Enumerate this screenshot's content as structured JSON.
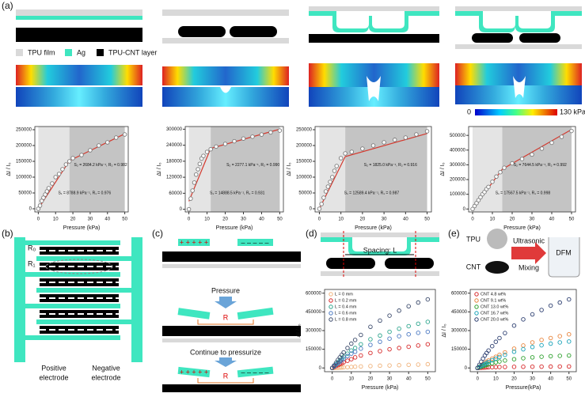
{
  "panel_labels": [
    "(a)",
    "(b)",
    "(c)",
    "(d)",
    "(e)"
  ],
  "legend_a": [
    "TPU film",
    "Ag",
    "TPU-CNT layer"
  ],
  "colorbar": {
    "min": "0",
    "max": "130 kPa"
  },
  "panel_b": {
    "labels": [
      "R₀",
      "R₁"
    ],
    "electrodes": [
      [
        "Positive",
        "electrode"
      ],
      [
        "Negative",
        "electrode"
      ]
    ]
  },
  "panel_c": {
    "plus": "+ + + + +",
    "minus": "– – – – –",
    "step1": "Pressure",
    "step2": "Continue to pressurize",
    "resistor": "R"
  },
  "panel_d": {
    "spacing": "Spacing: L"
  },
  "panel_e": {
    "tpu": "TPU",
    "cnt": "CNT",
    "ultrasonic": "Ultrasonic",
    "mixing": "Mixing",
    "dfm": "DFM"
  },
  "chart_data": [
    {
      "type": "scatter",
      "x_label": "Pressure (kPa)",
      "y_label": "ΔI / I₀",
      "xlim": [
        -2,
        52
      ],
      "xticks": [
        0,
        10,
        20,
        30,
        40,
        50
      ],
      "ylim": [
        -10000,
        260000
      ],
      "yticks": [
        0,
        50000,
        100000,
        150000,
        200000,
        250000
      ],
      "regions": [
        {
          "from": 0,
          "to": 18,
          "color": "#e4e4e4"
        },
        {
          "from": 18,
          "to": 50,
          "color": "#c4c4c4"
        }
      ],
      "x": [
        0,
        1,
        2,
        3,
        4,
        5,
        6,
        8,
        10,
        12,
        14,
        16,
        18,
        20,
        25,
        30,
        35,
        40,
        45,
        50
      ],
      "series": [
        {
          "color": "#7a7a7a",
          "values": [
            0,
            10000,
            25000,
            35000,
            45000,
            55000,
            65000,
            80000,
            100000,
            110000,
            125000,
            140000,
            150000,
            160000,
            170000,
            185000,
            200000,
            210000,
            225000,
            235000
          ]
        }
      ],
      "fit": {
        "x": [
          0,
          18,
          50
        ],
        "values": [
          0,
          152000,
          237000
        ],
        "color": "#d43a2f"
      },
      "annotations": [
        "S₂ = 2684.2 kPa⁻¹, R₂ = 0.982",
        "S₁ = 8788.9 kPa⁻¹, R₁ = 0.976"
      ]
    },
    {
      "type": "scatter",
      "x_label": "Pressure (kPa)",
      "y_label": "ΔI / I₀",
      "xlim": [
        -2,
        52
      ],
      "xticks": [
        0,
        10,
        20,
        30,
        40,
        50
      ],
      "ylim": [
        -10000,
        310000
      ],
      "yticks": [
        0,
        60000,
        120000,
        180000,
        240000,
        300000
      ],
      "regions": [
        {
          "from": 0,
          "to": 12,
          "color": "#e4e4e4"
        },
        {
          "from": 12,
          "to": 50,
          "color": "#c4c4c4"
        }
      ],
      "x": [
        0,
        1,
        2,
        3,
        4,
        5,
        6,
        7,
        8,
        10,
        12,
        15,
        20,
        25,
        30,
        35,
        40,
        45,
        50
      ],
      "series": [
        {
          "color": "#7a7a7a",
          "values": [
            0,
            40000,
            70000,
            100000,
            130000,
            150000,
            170000,
            190000,
            200000,
            215000,
            225000,
            235000,
            245000,
            255000,
            265000,
            272000,
            280000,
            288000,
            295000
          ]
        }
      ],
      "fit": {
        "x": [
          0,
          12,
          50
        ],
        "values": [
          30000,
          228000,
          300000
        ],
        "color": "#d43a2f"
      },
      "annotations": [
        "S₂ = 2277.1 kPa⁻¹, R₂ = 0.990",
        "S₁ = 14888.5 kPa⁻¹, R₁ = 0.931"
      ]
    },
    {
      "type": "scatter",
      "x_label": "Pressure (kPa)",
      "y_label": "ΔI / I₀",
      "xlim": [
        -2,
        52
      ],
      "xticks": [
        0,
        10,
        20,
        30,
        40,
        50
      ],
      "ylim": [
        -10000,
        260000
      ],
      "yticks": [
        0,
        50000,
        100000,
        150000,
        200000,
        250000
      ],
      "regions": [
        {
          "from": 0,
          "to": 12,
          "color": "#e4e4e4"
        },
        {
          "from": 12,
          "to": 50,
          "color": "#c4c4c4"
        }
      ],
      "x": [
        0,
        1,
        2,
        3,
        4,
        5,
        6,
        7,
        8,
        10,
        12,
        15,
        20,
        25,
        30,
        35,
        40,
        45,
        50
      ],
      "series": [
        {
          "color": "#7a7a7a",
          "values": [
            0,
            15000,
            35000,
            55000,
            70000,
            85000,
            100000,
            120000,
            135000,
            160000,
            175000,
            180000,
            190000,
            200000,
            210000,
            218000,
            225000,
            235000,
            245000
          ]
        }
      ],
      "fit": {
        "x": [
          0,
          12,
          50
        ],
        "values": [
          0,
          165000,
          238000
        ],
        "color": "#d43a2f"
      },
      "annotations": [
        "S₂ = 1825.0 kPa⁻¹, R₂ = 0.916",
        "S₁ = 12589.4 kPa⁻¹, R₁ = 0.987"
      ]
    },
    {
      "type": "scatter",
      "x_label": "Pressure (kPa)",
      "y_label": "ΔI / I₀",
      "xlim": [
        -2,
        52
      ],
      "xticks": [
        0,
        10,
        20,
        30,
        40,
        50
      ],
      "ylim": [
        -20000,
        560000
      ],
      "yticks": [
        0,
        100000,
        200000,
        300000,
        400000,
        500000
      ],
      "regions": [
        {
          "from": 0,
          "to": 15,
          "color": "#e4e4e4"
        },
        {
          "from": 15,
          "to": 50,
          "color": "#c4c4c4"
        }
      ],
      "x": [
        0,
        1,
        2,
        3,
        4,
        5,
        6,
        7,
        8,
        10,
        12,
        14,
        16,
        20,
        25,
        30,
        35,
        40,
        45,
        50
      ],
      "series": [
        {
          "color": "#7a7a7a",
          "values": [
            0,
            20000,
            40000,
            60000,
            80000,
            100000,
            115000,
            135000,
            150000,
            185000,
            220000,
            250000,
            280000,
            310000,
            340000,
            370000,
            410000,
            450000,
            490000,
            530000
          ]
        }
      ],
      "fit": {
        "x": [
          0,
          15,
          50
        ],
        "values": [
          0,
          270000,
          540000
        ],
        "color": "#d43a2f"
      },
      "annotations": [
        "S₂ = 7644.5 kPa⁻¹, R₂ = 0.992",
        "S₁ = 17567.5 kPa⁻¹, R₁ = 0.998"
      ]
    },
    {
      "type": "scatter",
      "x_label": "Pressure (kPa)",
      "y_label": "ΔI / I₀",
      "legend": "top-left",
      "xlim": [
        -4,
        54
      ],
      "xticks": [
        0,
        10,
        20,
        30,
        40,
        50
      ],
      "ylim": [
        -30000,
        630000
      ],
      "yticks": [
        0,
        150000,
        300000,
        450000,
        600000
      ],
      "x": [
        0,
        1,
        2,
        3,
        4,
        5,
        6,
        8,
        10,
        12,
        15,
        20,
        25,
        30,
        35,
        40,
        45,
        50
      ],
      "series": [
        {
          "name": "L = 0 mm",
          "color": "#f0b27a",
          "values": [
            0,
            500,
            1000,
            2000,
            3000,
            4000,
            5000,
            6000,
            8000,
            10000,
            12000,
            15000,
            18000,
            20000,
            22000,
            25000,
            27000,
            30000
          ]
        },
        {
          "name": "L = 0.2 mm",
          "color": "#d62728",
          "values": [
            0,
            8000,
            15000,
            22000,
            30000,
            38000,
            45000,
            58000,
            70000,
            85000,
            100000,
            120000,
            135000,
            150000,
            160000,
            170000,
            180000,
            190000
          ]
        },
        {
          "name": "L = 0.4 mm",
          "color": "#2ca58d",
          "values": [
            0,
            15000,
            30000,
            45000,
            60000,
            75000,
            90000,
            115000,
            140000,
            160000,
            190000,
            230000,
            260000,
            290000,
            315000,
            335000,
            355000,
            370000
          ]
        },
        {
          "name": "L = 0.6 mm",
          "color": "#4a78c2",
          "values": [
            0,
            12000,
            25000,
            37000,
            50000,
            62000,
            74000,
            95000,
            115000,
            130000,
            155000,
            185000,
            210000,
            235000,
            255000,
            270000,
            282000,
            290000
          ]
        },
        {
          "name": "L = 0.8 mm",
          "color": "#3b4a6b",
          "values": [
            0,
            20000,
            42000,
            65000,
            85000,
            105000,
            125000,
            160000,
            195000,
            225000,
            265000,
            330000,
            380000,
            420000,
            460000,
            495000,
            525000,
            550000
          ]
        }
      ]
    },
    {
      "type": "scatter",
      "x_label": "Pressure(kPa)",
      "y_label": "ΔI / I₀",
      "legend": "top-left",
      "xlim": [
        -4,
        54
      ],
      "xticks": [
        0,
        10,
        20,
        30,
        40,
        50
      ],
      "ylim": [
        -30000,
        630000
      ],
      "yticks": [
        0,
        150000,
        300000,
        450000,
        600000
      ],
      "x": [
        0,
        1,
        2,
        3,
        4,
        5,
        6,
        8,
        10,
        12,
        15,
        20,
        25,
        30,
        35,
        40,
        45,
        50
      ],
      "series": [
        {
          "name": "CNT 4.8 wt%",
          "color": "#d62728",
          "values": [
            0,
            1000,
            2000,
            3000,
            4000,
            5000,
            5500,
            6000,
            7000,
            7500,
            8000,
            9000,
            9500,
            10000,
            10500,
            11000,
            11500,
            12000
          ]
        },
        {
          "name": "CNT 9.1 wt%",
          "color": "#e8833a",
          "values": [
            0,
            10000,
            20000,
            30000,
            40000,
            50000,
            60000,
            75000,
            90000,
            105000,
            125000,
            155000,
            180000,
            205000,
            225000,
            240000,
            255000,
            270000
          ]
        },
        {
          "name": "CNT 13.0 wt%",
          "color": "#2ca02c",
          "values": [
            0,
            5000,
            10000,
            15000,
            20000,
            25000,
            30000,
            38000,
            45000,
            52000,
            60000,
            70000,
            78000,
            85000,
            90000,
            94000,
            97000,
            100000
          ]
        },
        {
          "name": "CNT 16.7 wt%",
          "color": "#17a2b8",
          "values": [
            0,
            8000,
            16000,
            24000,
            32000,
            40000,
            48000,
            62000,
            75000,
            88000,
            105000,
            130000,
            150000,
            168000,
            182000,
            195000,
            205000,
            212000
          ]
        },
        {
          "name": "CNT 20.0 wt%",
          "color": "#2c3e70",
          "values": [
            0,
            25000,
            50000,
            75000,
            100000,
            120000,
            140000,
            175000,
            210000,
            240000,
            280000,
            340000,
            390000,
            430000,
            465000,
            500000,
            525000,
            550000
          ]
        }
      ]
    }
  ]
}
